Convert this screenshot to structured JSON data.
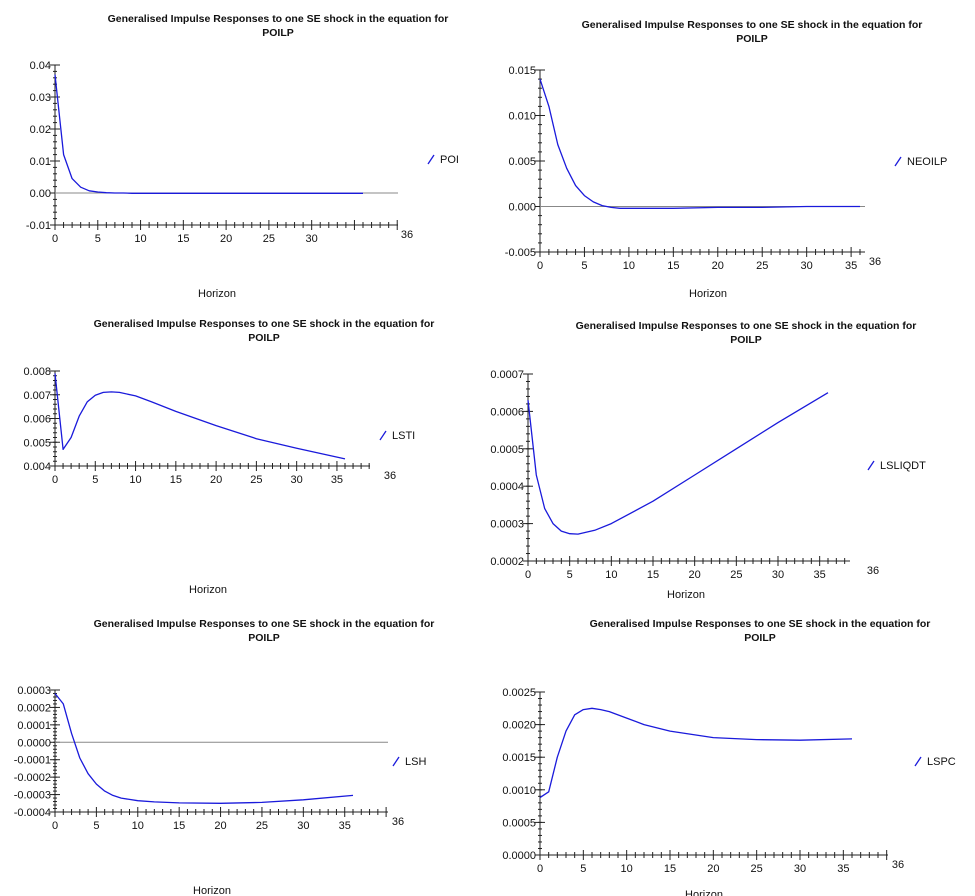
{
  "chart_data": [
    {
      "type": "line",
      "title_line1": "Generalised Impulse Responses to one SE shock in the equation for",
      "title_line2": "POILP",
      "xlabel": "Horizon",
      "x_ticks": [
        0,
        5,
        10,
        15,
        20,
        25,
        30
      ],
      "x_end_label": "36",
      "xlim": [
        0,
        36
      ],
      "y_tick_labels": [
        "0.04",
        "0.03",
        "0.02",
        "0.01",
        "0.00",
        "-0.01"
      ],
      "y_ticks": [
        0.04,
        0.03,
        0.02,
        0.01,
        0.0,
        -0.01
      ],
      "ylim": [
        -0.01,
        0.04
      ],
      "zero_line": true,
      "legend_position": "right",
      "series": [
        {
          "name": "POI",
          "color": "#1a1adb",
          "x": [
            0,
            1,
            2,
            3,
            4,
            5,
            6,
            7,
            8,
            9,
            10,
            12,
            15,
            20,
            25,
            30,
            36
          ],
          "values": [
            0.037,
            0.012,
            0.0045,
            0.0018,
            0.0007,
            0.0003,
            0.0001,
            0.0,
            0.0,
            -0.0001,
            -0.0001,
            -0.0001,
            -0.0001,
            -0.0001,
            -0.0001,
            -0.0001,
            -0.0001
          ]
        }
      ]
    },
    {
      "type": "line",
      "title_line1": "Generalised Impulse Responses to one SE shock in the equation for",
      "title_line2": "POILP",
      "xlabel": "Horizon",
      "x_ticks": [
        0,
        5,
        10,
        15,
        20,
        25,
        30,
        35
      ],
      "x_end_label": "36",
      "xlim": [
        0,
        36
      ],
      "y_tick_labels": [
        "0.015",
        "0.010",
        "0.005",
        "0.000",
        "-0.005"
      ],
      "y_ticks": [
        0.015,
        0.01,
        0.005,
        0.0,
        -0.005
      ],
      "ylim": [
        -0.005,
        0.015
      ],
      "zero_line": true,
      "legend_position": "right",
      "series": [
        {
          "name": "NEOILP",
          "color": "#1a1adb",
          "x": [
            0,
            1,
            2,
            3,
            4,
            5,
            6,
            7,
            8,
            9,
            10,
            12,
            15,
            20,
            25,
            30,
            36
          ],
          "values": [
            0.014,
            0.011,
            0.0068,
            0.0042,
            0.0023,
            0.0012,
            0.0005,
            0.0001,
            -0.0001,
            -0.0002,
            -0.0002,
            -0.0002,
            -0.0002,
            -0.0001,
            -0.0001,
            0.0,
            0.0
          ]
        }
      ]
    },
    {
      "type": "line",
      "title_line1": "Generalised Impulse Responses to one SE shock in the equation for",
      "title_line2": "POILP",
      "xlabel": "Horizon",
      "x_ticks": [
        0,
        5,
        10,
        15,
        20,
        25,
        30,
        35
      ],
      "x_end_label": "36",
      "xlim": [
        0,
        36
      ],
      "y_tick_labels": [
        "0.008",
        "0.007",
        "0.006",
        "0.005",
        "0.004"
      ],
      "y_ticks": [
        0.008,
        0.007,
        0.006,
        0.005,
        0.004
      ],
      "ylim": [
        0.004,
        0.008
      ],
      "zero_line": false,
      "legend_position": "right",
      "series": [
        {
          "name": "LSTI",
          "color": "#1a1adb",
          "x": [
            0,
            1,
            2,
            3,
            4,
            5,
            6,
            7,
            8,
            10,
            12,
            15,
            20,
            25,
            30,
            36
          ],
          "values": [
            0.0079,
            0.0047,
            0.0052,
            0.0061,
            0.0067,
            0.00698,
            0.0071,
            0.00712,
            0.0071,
            0.00695,
            0.0067,
            0.0063,
            0.0057,
            0.00515,
            0.00475,
            0.0043
          ]
        }
      ]
    },
    {
      "type": "line",
      "title_line1": "Generalised Impulse Responses to one SE shock in the equation for",
      "title_line2": "POILP",
      "xlabel": "Horizon",
      "x_ticks": [
        0,
        5,
        10,
        15,
        20,
        25,
        30,
        35
      ],
      "x_end_label": "36",
      "xlim": [
        0,
        36
      ],
      "y_tick_labels": [
        "0.0007",
        "0.0006",
        "0.0005",
        "0.0004",
        "0.0003",
        "0.0002"
      ],
      "y_ticks": [
        0.0007,
        0.0006,
        0.0005,
        0.0004,
        0.0003,
        0.0002
      ],
      "ylim": [
        0.0002,
        0.0007
      ],
      "zero_line": false,
      "legend_position": "right",
      "series": [
        {
          "name": "LSLIQDT",
          "color": "#1a1adb",
          "x": [
            0,
            1,
            2,
            3,
            4,
            5,
            6,
            8,
            10,
            15,
            20,
            25,
            30,
            36
          ],
          "values": [
            0.00063,
            0.00043,
            0.00034,
            0.0003,
            0.00028,
            0.000273,
            0.000272,
            0.000282,
            0.0003,
            0.00036,
            0.00043,
            0.0005,
            0.00057,
            0.00065
          ]
        }
      ]
    },
    {
      "type": "line",
      "title_line1": "Generalised Impulse Responses to one SE shock in the equation for",
      "title_line2": "POILP",
      "xlabel": "Horizon",
      "x_ticks": [
        0,
        5,
        10,
        15,
        20,
        25,
        30,
        35
      ],
      "x_end_label": "36",
      "xlim": [
        0,
        36
      ],
      "y_tick_labels": [
        "0.0003",
        "0.0002",
        "0.0001",
        "0.0000",
        "-0.0001",
        "-0.0002",
        "-0.0003",
        "-0.0004"
      ],
      "y_ticks": [
        0.0003,
        0.0002,
        0.0001,
        0.0,
        -0.0001,
        -0.0002,
        -0.0003,
        -0.0004
      ],
      "ylim": [
        -0.0004,
        0.0003
      ],
      "zero_line": true,
      "legend_position": "right",
      "series": [
        {
          "name": "LSH",
          "color": "#1a1adb",
          "x": [
            0,
            1,
            2,
            3,
            4,
            5,
            6,
            7,
            8,
            10,
            12,
            15,
            20,
            25,
            30,
            36
          ],
          "values": [
            0.00028,
            0.00022,
            5e-05,
            -9e-05,
            -0.00018,
            -0.00024,
            -0.00028,
            -0.000305,
            -0.00032,
            -0.000335,
            -0.000342,
            -0.000348,
            -0.00035,
            -0.000345,
            -0.00033,
            -0.000305
          ]
        }
      ]
    },
    {
      "type": "line",
      "title_line1": "Generalised Impulse Responses to one SE shock in the equation for",
      "title_line2": "POILP",
      "xlabel": "Horizon",
      "x_ticks": [
        0,
        5,
        10,
        15,
        20,
        25,
        30,
        35
      ],
      "x_end_label": "36",
      "xlim": [
        0,
        36
      ],
      "y_tick_labels": [
        "0.0025",
        "0.0020",
        "0.0015",
        "0.0010",
        "0.0005",
        "0.0000"
      ],
      "y_ticks": [
        0.0025,
        0.002,
        0.0015,
        0.001,
        0.0005,
        0.0
      ],
      "ylim": [
        0.0,
        0.0025
      ],
      "zero_line": false,
      "legend_position": "right",
      "series": [
        {
          "name": "LSPC",
          "color": "#1a1adb",
          "x": [
            0,
            1,
            2,
            3,
            4,
            5,
            6,
            7,
            8,
            10,
            12,
            15,
            20,
            25,
            30,
            36
          ],
          "values": [
            0.00088,
            0.00097,
            0.0015,
            0.0019,
            0.00215,
            0.00223,
            0.00225,
            0.00223,
            0.0022,
            0.0021,
            0.002,
            0.0019,
            0.0018,
            0.00177,
            0.00176,
            0.00178
          ]
        }
      ]
    }
  ]
}
